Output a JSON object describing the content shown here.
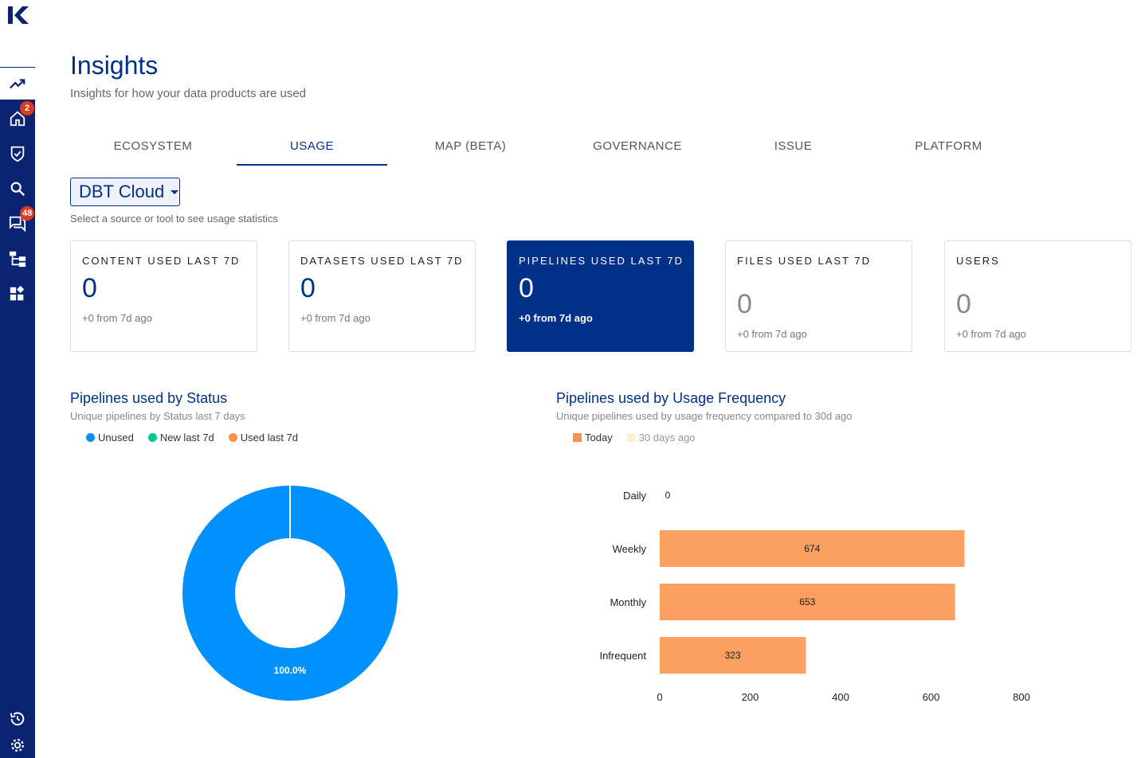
{
  "sidebar": {
    "items": [
      {
        "name": "insights",
        "icon": "trending-up-icon",
        "active": true
      },
      {
        "name": "home",
        "icon": "home-icon",
        "badge": "2"
      },
      {
        "name": "tasks",
        "icon": "shield-check-icon"
      },
      {
        "name": "search",
        "icon": "search-icon"
      },
      {
        "name": "messages",
        "icon": "chat-icon",
        "badge": "48"
      },
      {
        "name": "lineage",
        "icon": "hierarchy-icon"
      },
      {
        "name": "widgets",
        "icon": "widgets-icon"
      }
    ],
    "bottom": [
      {
        "name": "history",
        "icon": "history-icon"
      },
      {
        "name": "settings",
        "icon": "gear-icon"
      }
    ]
  },
  "header": {
    "title": "Insights",
    "subtitle": "Insights for how your data products are used"
  },
  "tabs": [
    {
      "label": "ECOSYSTEM"
    },
    {
      "label": "USAGE",
      "active": true
    },
    {
      "label": "MAP (BETA)"
    },
    {
      "label": "GOVERNANCE"
    },
    {
      "label": "ISSUE"
    },
    {
      "label": "PLATFORM"
    }
  ],
  "source": {
    "selected": "DBT Cloud",
    "hint": "Select a source or tool to see usage statistics"
  },
  "cards": [
    {
      "label": "CONTENT USED LAST 7D",
      "value": "0",
      "delta": "+0 from 7d ago"
    },
    {
      "label": "DATASETS USED LAST 7D",
      "value": "0",
      "delta": "+0 from 7d ago"
    },
    {
      "label": "PIPELINES USED LAST 7D",
      "value": "0",
      "delta": "+0 from 7d ago",
      "highlight": true
    },
    {
      "label": "FILES USED LAST 7D",
      "value": "0",
      "delta": "+0 from 7d ago"
    },
    {
      "label": "USERS",
      "value": "0",
      "delta": "+0 from 7d ago"
    }
  ],
  "colors": {
    "brand": "#003087",
    "sidebar": "#0a2472",
    "unused": "#0091ff",
    "new": "#00c98d",
    "used": "#f7924a",
    "today": "#fca062",
    "past": "#fdf0d5"
  },
  "chart_data": [
    {
      "type": "pie",
      "title": "Pipelines used by Status",
      "subtitle": "Unique pipelines by Status last 7 days",
      "legend": [
        "Unused",
        "New last 7d",
        "Used last 7d"
      ],
      "values": [
        100,
        0,
        0
      ],
      "slice_labels": [
        "100.0%"
      ]
    },
    {
      "type": "bar",
      "orientation": "horizontal",
      "title": "Pipelines used by Usage Frequency",
      "subtitle": "Unique pipelines used by usage frequency compared to 30d ago",
      "legend": [
        "Today",
        "30 days ago"
      ],
      "categories": [
        "Daily",
        "Weekly",
        "Monthly",
        "Infrequent"
      ],
      "series": [
        {
          "name": "Today",
          "values": [
            0,
            674,
            653,
            323
          ]
        }
      ],
      "xlim": [
        0,
        800
      ],
      "xticks": [
        "0",
        "200",
        "400",
        "600",
        "800"
      ]
    }
  ]
}
